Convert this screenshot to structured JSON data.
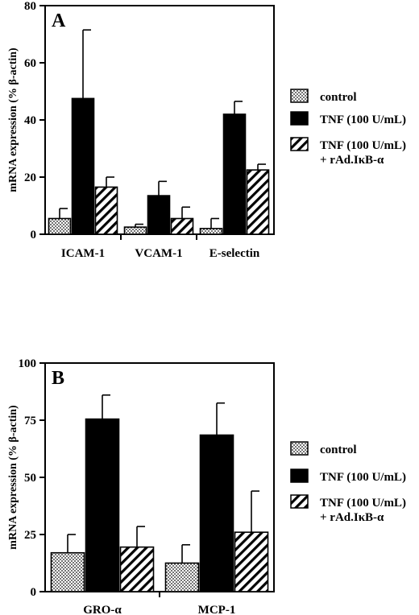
{
  "chart_data": [
    {
      "type": "bar",
      "panel_label": "A",
      "categories": [
        "ICAM-1",
        "VCAM-1",
        "E-selectin"
      ],
      "ylabel": "mRNA expression (% β-actin)",
      "ylim": [
        0,
        80
      ],
      "yticks": [
        "0",
        "20",
        "40",
        "60",
        "80"
      ],
      "series": [
        {
          "name": "control",
          "pattern": "dots",
          "values": [
            5.5,
            2.5,
            2.0
          ],
          "errors": [
            3.5,
            1.0,
            3.5
          ]
        },
        {
          "name": "TNF (100 U/mL)",
          "pattern": "solid",
          "values": [
            47.5,
            13.5,
            42.0
          ],
          "errors": [
            24.0,
            5.0,
            4.5
          ]
        },
        {
          "name": "TNF (100 U/mL)|+ rAd.IκB-α",
          "pattern": "hatch",
          "values": [
            16.5,
            5.5,
            22.5
          ],
          "errors": [
            3.5,
            4.0,
            2.0
          ]
        }
      ],
      "legend_position": "right"
    },
    {
      "type": "bar",
      "panel_label": "B",
      "categories": [
        "GRO-α",
        "MCP-1"
      ],
      "ylabel": "mRNA expression (% β-actin)",
      "ylim": [
        0,
        100
      ],
      "yticks": [
        "0",
        "25",
        "50",
        "75",
        "100"
      ],
      "series": [
        {
          "name": "control",
          "pattern": "dots",
          "values": [
            17.0,
            12.5
          ],
          "errors": [
            8.0,
            8.0
          ]
        },
        {
          "name": "TNF (100 U/mL)",
          "pattern": "solid",
          "values": [
            75.5,
            68.5
          ],
          "errors": [
            10.5,
            14.0
          ]
        },
        {
          "name": "TNF (100 U/mL)|+ rAd.IκB-α",
          "pattern": "hatch",
          "values": [
            19.5,
            26.0
          ],
          "errors": [
            9.0,
            18.0
          ]
        }
      ],
      "legend_position": "right"
    }
  ]
}
